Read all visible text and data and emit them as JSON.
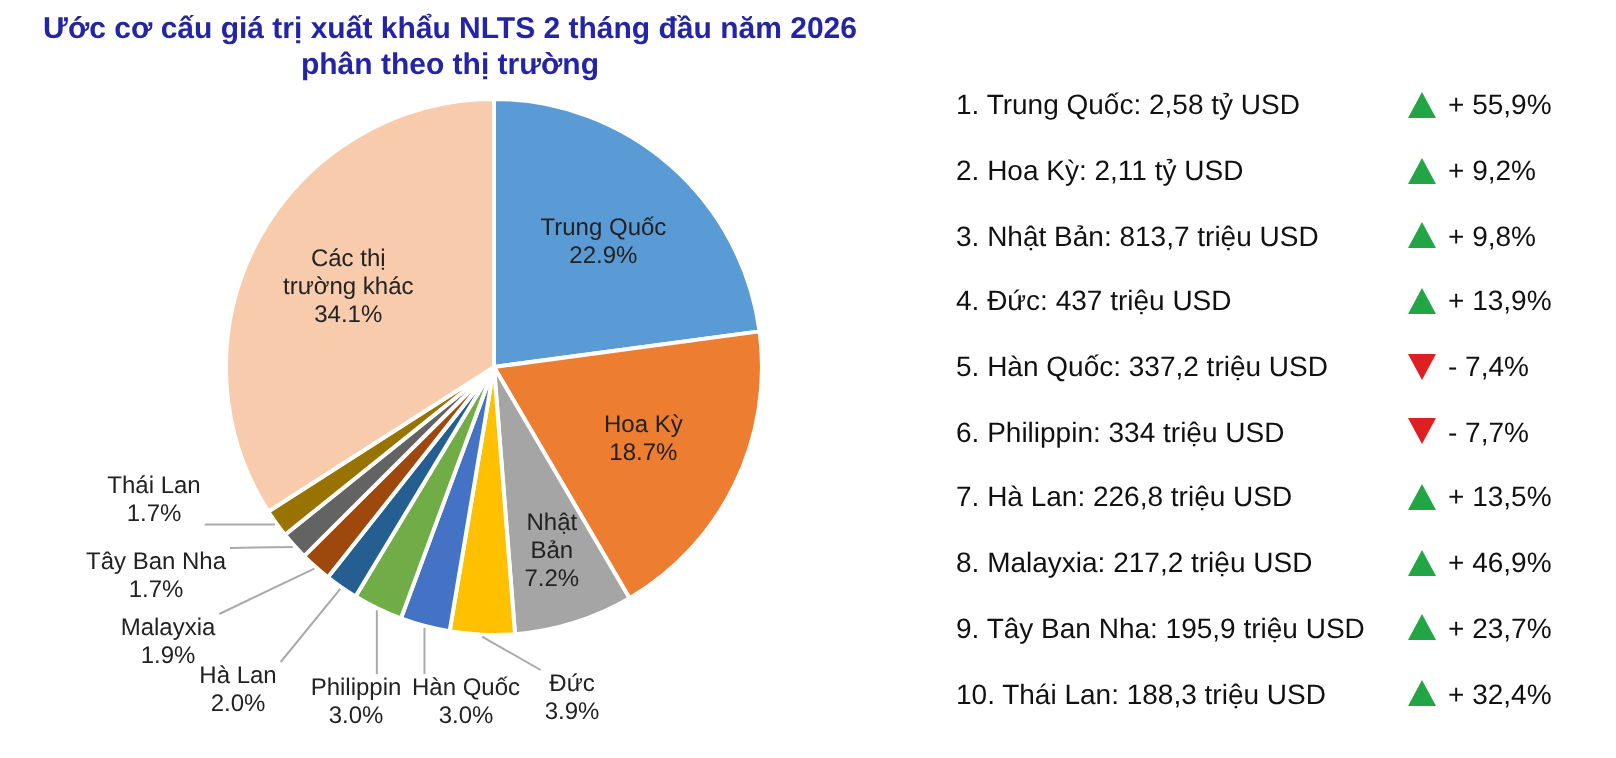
{
  "chart_data": [
    {
      "type": "pie",
      "title": "Ước cơ cấu giá trị xuất khẩu NLTS 2 tháng đầu năm 2026",
      "subtitle": "phân theo thị trường",
      "categories": [
        "Trung Quốc",
        "Hoa Kỳ",
        "Nhật Bản",
        "Đức",
        "Hàn Quốc",
        "Philippin",
        "Hà Lan",
        "Malayxia",
        "Tây Ban Nha",
        "Thái Lan",
        "Các thị trường khác"
      ],
      "values": [
        22.9,
        18.7,
        7.2,
        3.9,
        3.0,
        3.0,
        2.0,
        1.9,
        1.7,
        1.7,
        34.1
      ],
      "value_labels": [
        "22.9%",
        "18.7%",
        "7.2%",
        "3.9%",
        "3.0%",
        "3.0%",
        "2.0%",
        "1.9%",
        "1.7%",
        "1.7%",
        "34.1%"
      ],
      "colors": [
        "#5b9bd5",
        "#ed7d31",
        "#a5a5a5",
        "#ffc000",
        "#4472c4",
        "#70ad47",
        "#255e91",
        "#9e480e",
        "#636363",
        "#997300",
        "#f8cbad"
      ]
    },
    {
      "type": "other",
      "annotations": [
        "1. Trung Quốc: 2,58 tỷ USD",
        "2. Hoa Kỳ: 2,11 tỷ USD",
        "3. Nhật Bản: 813,7 triệu USD",
        "4. Đức: 437 triệu USD",
        "5. Hàn Quốc: 337,2 triệu USD",
        "6. Philippin: 334 triệu USD",
        "7. Hà Lan: 226,8 triệu USD",
        "8. Malayxia: 217,2 triệu USD",
        "9. Tây Ban Nha: 195,9 triệu USD",
        "10. Thái Lan: 188,3 triệu USD"
      ],
      "values": [
        55.9,
        9.2,
        9.8,
        13.9,
        -7.4,
        -7.7,
        13.5,
        46.9,
        23.7,
        32.4
      ],
      "value_labels": [
        "+ 55,9%",
        "+ 9,2%",
        "+ 9,8%",
        "+ 13,9%",
        "- 7,4%",
        "- 7,7%",
        "+ 13,5%",
        "+ 46,9%",
        "+ 23,7%",
        "+ 32,4%"
      ],
      "colors": [
        "#22a645",
        "#22a645",
        "#22a645",
        "#22a645",
        "#e02020",
        "#e02020",
        "#22a645",
        "#22a645",
        "#22a645",
        "#22a645"
      ]
    }
  ]
}
